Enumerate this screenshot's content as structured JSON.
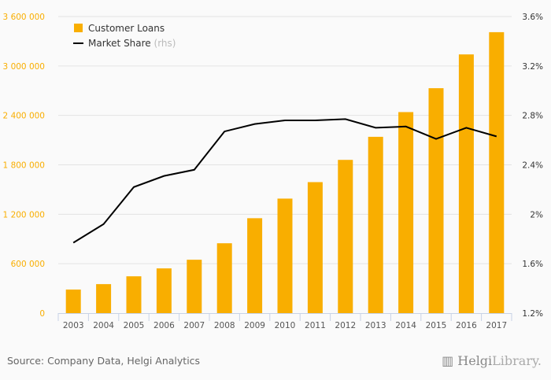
{
  "chart_data": {
    "type": "bar+line",
    "categories": [
      "2003",
      "2004",
      "2005",
      "2006",
      "2007",
      "2008",
      "2009",
      "2010",
      "2011",
      "2012",
      "2013",
      "2014",
      "2015",
      "2016",
      "2017"
    ],
    "series": [
      {
        "name": "Customer Loans",
        "axis": "left",
        "type": "bar",
        "color": "#f9ae00",
        "values": [
          286000,
          352000,
          447000,
          543000,
          648000,
          848000,
          1152000,
          1390000,
          1590000,
          1860000,
          2140000,
          2440000,
          2730000,
          3140000,
          3410000
        ]
      },
      {
        "name": "Market Share",
        "suffix": "(rhs)",
        "axis": "right",
        "type": "line",
        "color": "#000000",
        "values": [
          1.77,
          1.92,
          2.22,
          2.31,
          2.36,
          2.67,
          2.73,
          2.76,
          2.76,
          2.77,
          2.7,
          2.71,
          2.61,
          2.7,
          2.63
        ]
      }
    ],
    "left_axis": {
      "ylim": [
        0,
        3600000
      ],
      "ticks": [
        0,
        600000,
        1200000,
        1800000,
        2400000,
        3000000,
        3600000
      ],
      "tick_labels": [
        "0",
        "600 000",
        "1 200 000",
        "1 800 000",
        "2 400 000",
        "3 000 000",
        "3 600 000"
      ]
    },
    "right_axis": {
      "ylim": [
        1.2,
        3.6
      ],
      "ticks": [
        1.2,
        1.6,
        2.0,
        2.4,
        2.8,
        3.2,
        3.6
      ],
      "tick_labels": [
        "1.2%",
        "1.6%",
        "2%",
        "2.4%",
        "2.8%",
        "3.2%",
        "3.6%"
      ]
    },
    "legend_placement": "top-left",
    "grid": true
  },
  "footer": {
    "source": "Source: Company Data, Helgi Analytics",
    "logo_main": "Helgi",
    "logo_sub": "Library."
  }
}
